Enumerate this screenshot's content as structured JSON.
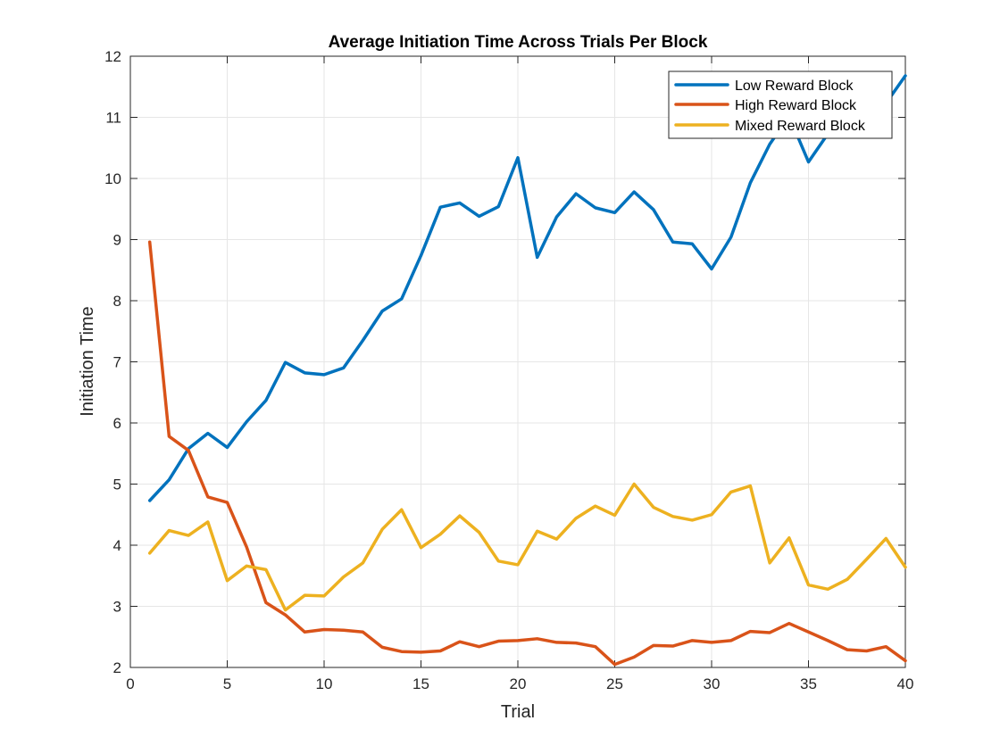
{
  "chart_data": {
    "type": "line",
    "title": "Average Initiation Time Across Trials Per Block",
    "xlabel": "Trial",
    "ylabel": "Initiation Time",
    "xlim": [
      0,
      40
    ],
    "ylim": [
      2,
      12
    ],
    "xticks": [
      0,
      5,
      10,
      15,
      20,
      25,
      30,
      35,
      40
    ],
    "yticks": [
      2,
      3,
      4,
      5,
      6,
      7,
      8,
      9,
      10,
      11,
      12
    ],
    "grid": true,
    "legend_position": "top-right",
    "x": [
      1,
      2,
      3,
      4,
      5,
      6,
      7,
      8,
      9,
      10,
      11,
      12,
      13,
      14,
      15,
      16,
      17,
      18,
      19,
      20,
      21,
      22,
      23,
      24,
      25,
      26,
      27,
      28,
      29,
      30,
      31,
      32,
      33,
      34,
      35,
      36,
      37,
      38,
      39,
      40
    ],
    "series": [
      {
        "name": "Low Reward Block",
        "color": "#0072BD",
        "values": [
          4.73,
          5.07,
          5.58,
          5.83,
          5.6,
          6.02,
          6.37,
          6.99,
          6.82,
          6.79,
          6.9,
          7.35,
          7.83,
          8.03,
          8.74,
          9.53,
          9.6,
          9.38,
          9.54,
          10.34,
          8.71,
          9.37,
          9.75,
          9.52,
          9.44,
          9.78,
          9.49,
          8.96,
          8.93,
          8.52,
          9.04,
          9.93,
          10.56,
          11.02,
          10.27,
          10.73,
          10.97,
          11.02,
          11.23,
          11.68
        ]
      },
      {
        "name": "High Reward Block",
        "color": "#D95319",
        "values": [
          8.96,
          5.78,
          5.55,
          4.79,
          4.7,
          3.97,
          3.06,
          2.86,
          2.58,
          2.62,
          2.61,
          2.58,
          2.33,
          2.26,
          2.25,
          2.27,
          2.42,
          2.34,
          2.43,
          2.44,
          2.47,
          2.41,
          2.4,
          2.34,
          2.05,
          2.17,
          2.36,
          2.35,
          2.44,
          2.41,
          2.44,
          2.59,
          2.57,
          2.72,
          2.58,
          2.44,
          2.29,
          2.27,
          2.34,
          2.11
        ]
      },
      {
        "name": "Mixed Reward Block",
        "color": "#EDB120",
        "values": [
          3.87,
          4.24,
          4.16,
          4.38,
          3.42,
          3.66,
          3.6,
          2.94,
          3.18,
          3.17,
          3.48,
          3.71,
          4.26,
          4.58,
          3.96,
          4.18,
          4.48,
          4.21,
          3.74,
          3.68,
          4.23,
          4.1,
          4.44,
          4.64,
          4.49,
          5.0,
          4.62,
          4.47,
          4.41,
          4.5,
          4.87,
          4.97,
          3.71,
          4.12,
          3.35,
          3.28,
          3.44,
          3.77,
          4.11,
          3.64
        ]
      }
    ]
  }
}
